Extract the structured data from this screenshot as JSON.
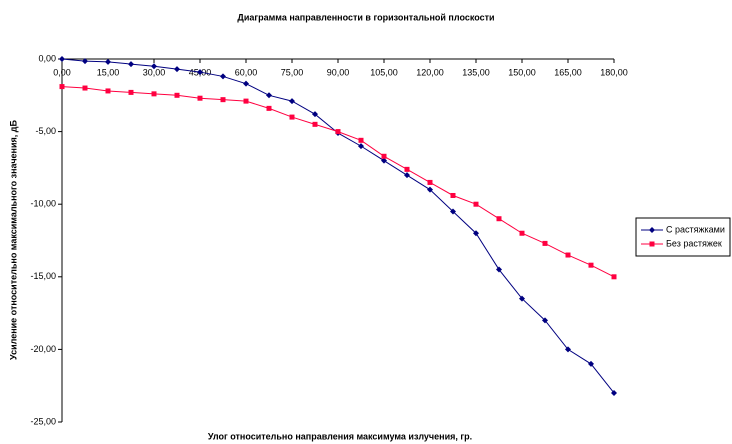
{
  "chart_data": {
    "type": "line",
    "title": "Диаграмма направленности в горизонтальной плоскости",
    "xlabel": "Улог относительно направления максимума излучения, гр.",
    "ylabel": "Усиление относительно максимального значения, дБ",
    "x": [
      0,
      7.5,
      15,
      22.5,
      30,
      37.5,
      45,
      52.5,
      60,
      67.5,
      75,
      82.5,
      90,
      97.5,
      105,
      112.5,
      120,
      127.5,
      135,
      142.5,
      150,
      157.5,
      165,
      172.5,
      180
    ],
    "series": [
      {
        "name": "С растяжками",
        "color": "#000080",
        "marker": "diamond",
        "values": [
          0,
          -0.15,
          -0.2,
          -0.35,
          -0.5,
          -0.7,
          -0.9,
          -1.2,
          -1.7,
          -2.5,
          -2.9,
          -3.8,
          -5.1,
          -6.0,
          -7.0,
          -8.0,
          -9.0,
          -10.5,
          -12.0,
          -14.5,
          -16.5,
          -18.0,
          -20.0,
          -21.0,
          -23.0
        ]
      },
      {
        "name": "Без растяжек",
        "color": "#ff0040",
        "marker": "square",
        "values": [
          -1.9,
          -2.0,
          -2.2,
          -2.3,
          -2.4,
          -2.5,
          -2.7,
          -2.8,
          -2.9,
          -3.4,
          -4.0,
          -4.5,
          -5.0,
          -5.6,
          -6.7,
          -7.6,
          -8.5,
          -9.4,
          -10.0,
          -11.0,
          -12.0,
          -12.7,
          -13.5,
          -14.2,
          -15.0
        ]
      }
    ],
    "xlim": [
      0,
      180
    ],
    "xticks": [
      {
        "value": 0,
        "label": "0,00"
      },
      {
        "value": 15,
        "label": "15,00"
      },
      {
        "value": 30,
        "label": "30,00"
      },
      {
        "value": 45,
        "label": "45,00"
      },
      {
        "value": 60,
        "label": "60,00"
      },
      {
        "value": 75,
        "label": "75,00"
      },
      {
        "value": 90,
        "label": "90,00"
      },
      {
        "value": 105,
        "label": "105,00"
      },
      {
        "value": 120,
        "label": "120,00"
      },
      {
        "value": 135,
        "label": "135,00"
      },
      {
        "value": 150,
        "label": "150,00"
      },
      {
        "value": 165,
        "label": "165,00"
      },
      {
        "value": 180,
        "label": "180,00"
      }
    ],
    "ylim": [
      -25,
      0
    ],
    "yticks": [
      {
        "value": 0,
        "label": "0,00"
      },
      {
        "value": -5,
        "label": "-5,00"
      },
      {
        "value": -10,
        "label": "-10,00"
      },
      {
        "value": -15,
        "label": "-15,00"
      },
      {
        "value": -20,
        "label": "-20,00"
      },
      {
        "value": -25,
        "label": "-25,00"
      }
    ],
    "legend": "right"
  }
}
